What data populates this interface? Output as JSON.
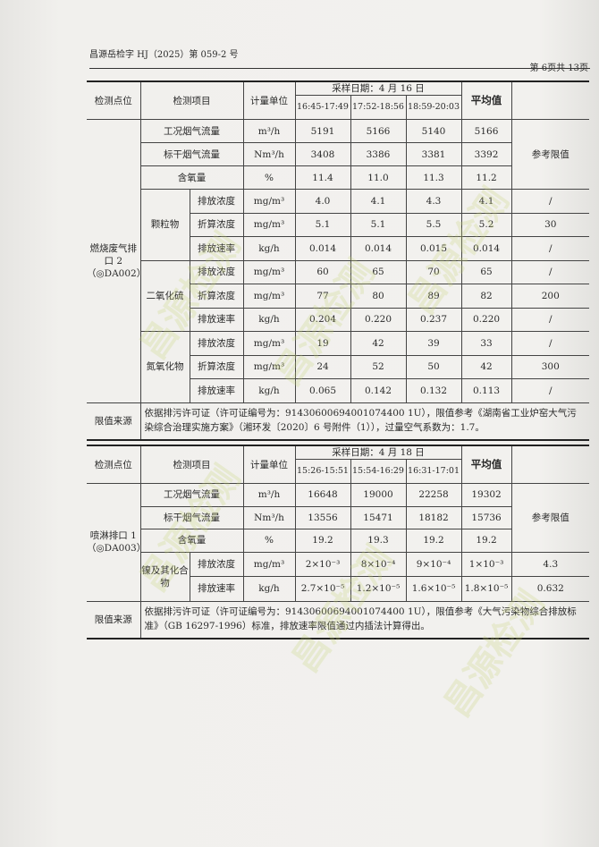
{
  "header": {
    "doc_number": "昌源岳检字 HJ（2025）第 059-2 号",
    "page_info": "第 6页共 13页"
  },
  "table1": {
    "headers": {
      "point": "检测点位",
      "item": "检测项目",
      "unit": "计量单位",
      "date": "采样日期：4 月 16 日",
      "times": [
        "16:45-17:49",
        "17:52-18:56",
        "18:59-20:03"
      ],
      "avg": "平均值",
      "ref": "参考限值"
    },
    "point": "燃烧废气排口 2（◎DA002）",
    "general_rows": [
      {
        "item": "工况烟气流量",
        "unit": "m³/h",
        "values": [
          "5191",
          "5166",
          "5140"
        ],
        "avg": "5166"
      },
      {
        "item": "标干烟气流量",
        "unit": "Nm³/h",
        "values": [
          "3408",
          "3386",
          "3381"
        ],
        "avg": "3392"
      },
      {
        "item": "含氧量",
        "unit": "%",
        "values": [
          "11.4",
          "11.0",
          "11.3"
        ],
        "avg": "11.2"
      }
    ],
    "groups": [
      {
        "name": "颗粒物",
        "rows": [
          {
            "item": "排放浓度",
            "unit": "mg/m³",
            "values": [
              "4.0",
              "4.1",
              "4.3"
            ],
            "avg": "4.1",
            "ref": "/"
          },
          {
            "item": "折算浓度",
            "unit": "mg/m³",
            "values": [
              "5.1",
              "5.1",
              "5.5"
            ],
            "avg": "5.2",
            "ref": "30"
          },
          {
            "item": "排放速率",
            "unit": "kg/h",
            "values": [
              "0.014",
              "0.014",
              "0.015"
            ],
            "avg": "0.014",
            "ref": "/"
          }
        ]
      },
      {
        "name": "二氧化硫",
        "rows": [
          {
            "item": "排放浓度",
            "unit": "mg/m³",
            "values": [
              "60",
              "65",
              "70"
            ],
            "avg": "65",
            "ref": "/"
          },
          {
            "item": "折算浓度",
            "unit": "mg/m³",
            "values": [
              "77",
              "80",
              "89"
            ],
            "avg": "82",
            "ref": "200"
          },
          {
            "item": "排放速率",
            "unit": "kg/h",
            "values": [
              "0.204",
              "0.220",
              "0.237"
            ],
            "avg": "0.220",
            "ref": "/"
          }
        ]
      },
      {
        "name": "氮氧化物",
        "rows": [
          {
            "item": "排放浓度",
            "unit": "mg/m³",
            "values": [
              "19",
              "42",
              "39"
            ],
            "avg": "33",
            "ref": "/"
          },
          {
            "item": "折算浓度",
            "unit": "mg/m³",
            "values": [
              "24",
              "52",
              "50"
            ],
            "avg": "42",
            "ref": "300"
          },
          {
            "item": "排放速率",
            "unit": "kg/h",
            "values": [
              "0.065",
              "0.142",
              "0.132"
            ],
            "avg": "0.113",
            "ref": "/"
          }
        ]
      }
    ],
    "limit_label": "限值来源",
    "limit_text": "依据排污许可证（许可证编号为：91430600694001074400 1U），限值参考《湖南省工业炉窑大气污染综合治理实施方案》（湘环发〔2020〕6 号附件（1）），过量空气系数为：1.7。"
  },
  "table2": {
    "headers": {
      "point": "检测点位",
      "item": "检测项目",
      "unit": "计量单位",
      "date": "采样日期：4 月 18 日",
      "times": [
        "15:26-15:51",
        "15:54-16:29",
        "16:31-17:01"
      ],
      "avg": "平均值",
      "ref": "参考限值"
    },
    "point": "喷淋排口 1（◎DA003）",
    "general_rows": [
      {
        "item": "工况烟气流量",
        "unit": "m³/h",
        "values": [
          "16648",
          "19000",
          "22258"
        ],
        "avg": "19302"
      },
      {
        "item": "标干烟气流量",
        "unit": "Nm³/h",
        "values": [
          "13556",
          "15471",
          "18182"
        ],
        "avg": "15736"
      },
      {
        "item": "含氧量",
        "unit": "%",
        "values": [
          "19.2",
          "19.3",
          "19.2"
        ],
        "avg": "19.2"
      }
    ],
    "groups": [
      {
        "name": "镍及其化合物",
        "rows": [
          {
            "item": "排放浓度",
            "unit": "mg/m³",
            "values": [
              "2×10⁻³",
              "8×10⁻⁴",
              "9×10⁻⁴"
            ],
            "avg": "1×10⁻³",
            "ref": "4.3"
          },
          {
            "item": "排放速率",
            "unit": "kg/h",
            "values": [
              "2.7×10⁻⁵",
              "1.2×10⁻⁵",
              "1.6×10⁻⁵"
            ],
            "avg": "1.8×10⁻⁵",
            "ref": "0.632"
          }
        ]
      }
    ],
    "limit_label": "限值来源",
    "limit_text": "依据排污许可证（许可证编号为：91430600694001074400 1U），限值参考《大气污染物综合排放标准》（GB 16297-1996）标准，排放速率限值通过内插法计算得出。"
  },
  "watermark": "昌源检测"
}
